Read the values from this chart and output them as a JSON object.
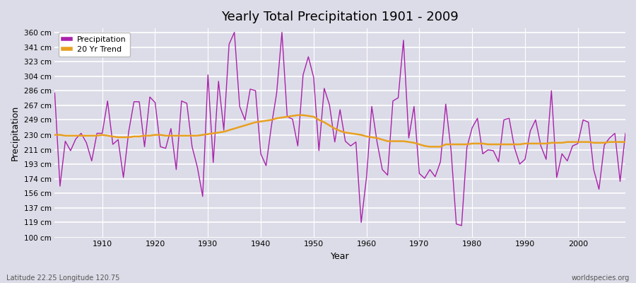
{
  "title": "Yearly Total Precipitation 1901 - 2009",
  "xlabel": "Year",
  "ylabel": "Precipitation",
  "bottom_left_label": "Latitude 22.25 Longitude 120.75",
  "bottom_right_label": "worldspecies.org",
  "precip_color": "#aa22aa",
  "trend_color": "#e8a020",
  "bg_color": "#dcdce8",
  "grid_color": "#ffffff",
  "ylim": [
    100,
    365
  ],
  "yticks": [
    100,
    119,
    137,
    156,
    174,
    193,
    211,
    230,
    249,
    267,
    286,
    304,
    323,
    341,
    360
  ],
  "ytick_labels": [
    "100 cm",
    "119 cm",
    "137 cm",
    "156 cm",
    "174 cm",
    "193 cm",
    "211 cm",
    "230 cm",
    "249 cm",
    "267 cm",
    "286 cm",
    "304 cm",
    "323 cm",
    "341 cm",
    "360 cm"
  ],
  "years": [
    1901,
    1902,
    1903,
    1904,
    1905,
    1906,
    1907,
    1908,
    1909,
    1910,
    1911,
    1912,
    1913,
    1914,
    1915,
    1916,
    1917,
    1918,
    1919,
    1920,
    1921,
    1922,
    1923,
    1924,
    1925,
    1926,
    1927,
    1928,
    1929,
    1930,
    1931,
    1932,
    1933,
    1934,
    1935,
    1936,
    1937,
    1938,
    1939,
    1940,
    1941,
    1942,
    1943,
    1944,
    1945,
    1946,
    1947,
    1948,
    1949,
    1950,
    1951,
    1952,
    1953,
    1954,
    1955,
    1956,
    1957,
    1958,
    1959,
    1960,
    1961,
    1962,
    1963,
    1964,
    1965,
    1966,
    1967,
    1968,
    1969,
    1970,
    1971,
    1972,
    1973,
    1974,
    1975,
    1976,
    1977,
    1978,
    1979,
    1980,
    1981,
    1982,
    1983,
    1984,
    1985,
    1986,
    1987,
    1988,
    1989,
    1990,
    1991,
    1992,
    1993,
    1994,
    1995,
    1996,
    1997,
    1998,
    1999,
    2000,
    2001,
    2002,
    2003,
    2004,
    2005,
    2006,
    2007,
    2008,
    2009
  ],
  "precip": [
    283,
    165,
    222,
    210,
    225,
    232,
    220,
    197,
    232,
    232,
    273,
    218,
    224,
    176,
    234,
    272,
    272,
    215,
    278,
    271,
    215,
    213,
    238,
    186,
    273,
    270,
    215,
    189,
    152,
    306,
    195,
    298,
    236,
    345,
    360,
    266,
    249,
    288,
    286,
    206,
    191,
    241,
    283,
    360,
    253,
    250,
    216,
    306,
    329,
    303,
    210,
    289,
    268,
    221,
    262,
    222,
    216,
    221,
    119,
    176,
    266,
    221,
    186,
    179,
    273,
    277,
    350,
    226,
    266,
    181,
    175,
    186,
    177,
    196,
    269,
    211,
    117,
    115,
    214,
    239,
    251,
    206,
    211,
    210,
    196,
    249,
    251,
    214,
    193,
    199,
    235,
    249,
    216,
    199,
    286,
    176,
    206,
    197,
    216,
    219,
    249,
    246,
    186,
    161,
    217,
    226,
    232,
    171,
    232
  ],
  "trend": [
    230,
    230,
    229,
    229,
    229,
    229,
    229,
    229,
    229,
    230,
    229,
    228,
    227,
    227,
    227,
    228,
    228,
    229,
    229,
    230,
    230,
    229,
    229,
    229,
    229,
    229,
    229,
    229,
    230,
    231,
    232,
    233,
    234,
    236,
    238,
    240,
    242,
    244,
    246,
    247,
    248,
    249,
    251,
    252,
    253,
    254,
    255,
    255,
    254,
    253,
    249,
    246,
    242,
    238,
    235,
    233,
    232,
    231,
    230,
    228,
    227,
    226,
    224,
    222,
    222,
    222,
    222,
    221,
    220,
    218,
    216,
    215,
    215,
    215,
    218,
    218,
    218,
    218,
    218,
    219,
    219,
    219,
    218,
    218,
    218,
    218,
    218,
    218,
    218,
    219,
    219,
    219,
    219,
    219,
    220,
    220,
    220,
    221,
    221,
    221,
    221,
    221,
    220,
    220,
    220,
    221,
    221,
    221,
    221
  ]
}
